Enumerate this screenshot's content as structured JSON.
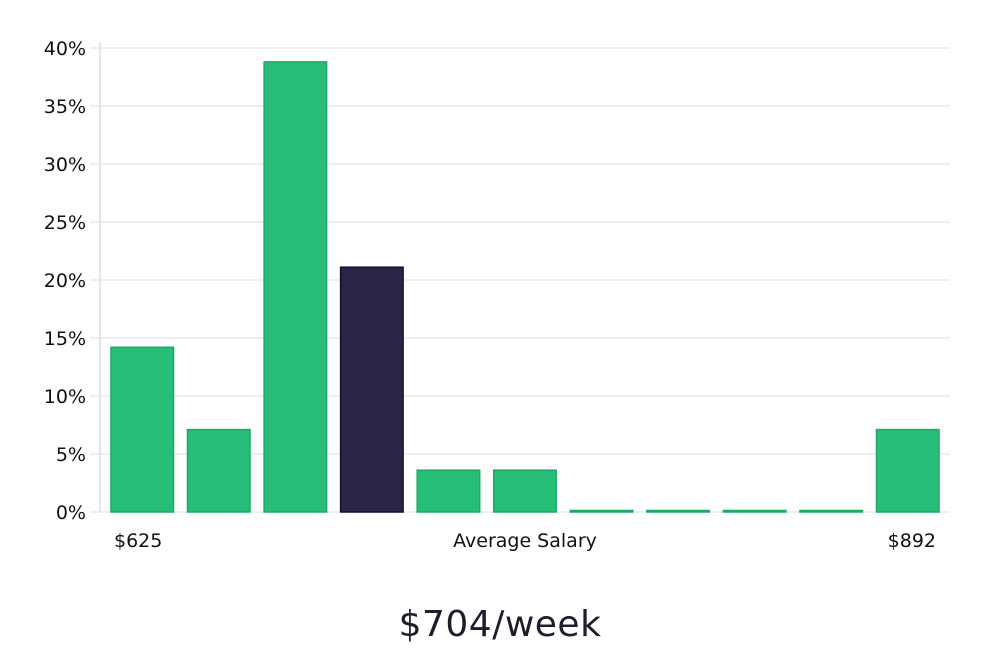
{
  "chart_data": {
    "type": "bar",
    "title": "",
    "xlabel": "Average Salary",
    "ylabel": "",
    "x_start_label": "$625",
    "x_end_label": "$892",
    "ylim": [
      0,
      40
    ],
    "yticks": [
      "0%",
      "5%",
      "10%",
      "15%",
      "20%",
      "25%",
      "30%",
      "35%",
      "40%"
    ],
    "ytick_values": [
      0,
      5,
      10,
      15,
      20,
      25,
      30,
      35,
      40
    ],
    "values": [
      14.2,
      7.1,
      38.8,
      21.1,
      3.6,
      3.6,
      0,
      0,
      0,
      0,
      7.1
    ],
    "highlight_index": 3,
    "colors": {
      "bar": "#27be77",
      "bar_stroke": "#1fa865",
      "highlight": "#282545",
      "highlight_stroke": "#121030",
      "grid": "#dddddd",
      "axis": "#cccccc"
    },
    "grid": true
  },
  "footer": {
    "value": "$704/week"
  }
}
